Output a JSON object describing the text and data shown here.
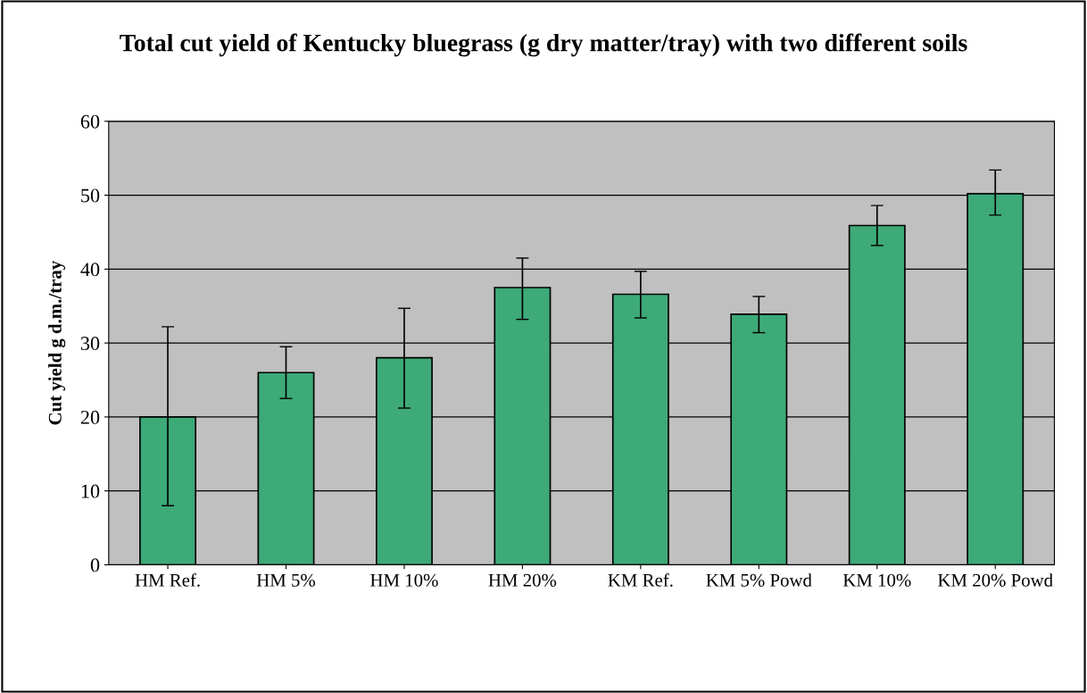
{
  "chart_data": {
    "type": "bar",
    "title": "Total cut yield of Kentucky bluegrass (g dry matter/tray) with two different soils",
    "ylabel": "Cut yield g d.m./tray",
    "categories": [
      "HM Ref.",
      "HM 5%",
      "HM 10%",
      "HM 20%",
      "KM Ref.",
      "KM 5% Powd",
      "KM 10%",
      "KM 20% Powd"
    ],
    "values": [
      20,
      26,
      28,
      37.5,
      36.6,
      33.9,
      45.9,
      50.2
    ],
    "errors": [
      [
        8,
        32.2
      ],
      [
        22.5,
        29.5
      ],
      [
        21.2,
        34.7
      ],
      [
        33.2,
        41.5
      ],
      [
        33.4,
        39.7
      ],
      [
        31.4,
        36.3
      ],
      [
        43.2,
        48.6
      ],
      [
        47.3,
        53.4
      ]
    ],
    "color": "#3daa78",
    "ylim": [
      0,
      60
    ],
    "yticks": [
      0,
      10,
      20,
      30,
      40,
      50,
      60
    ],
    "grid": "y"
  }
}
